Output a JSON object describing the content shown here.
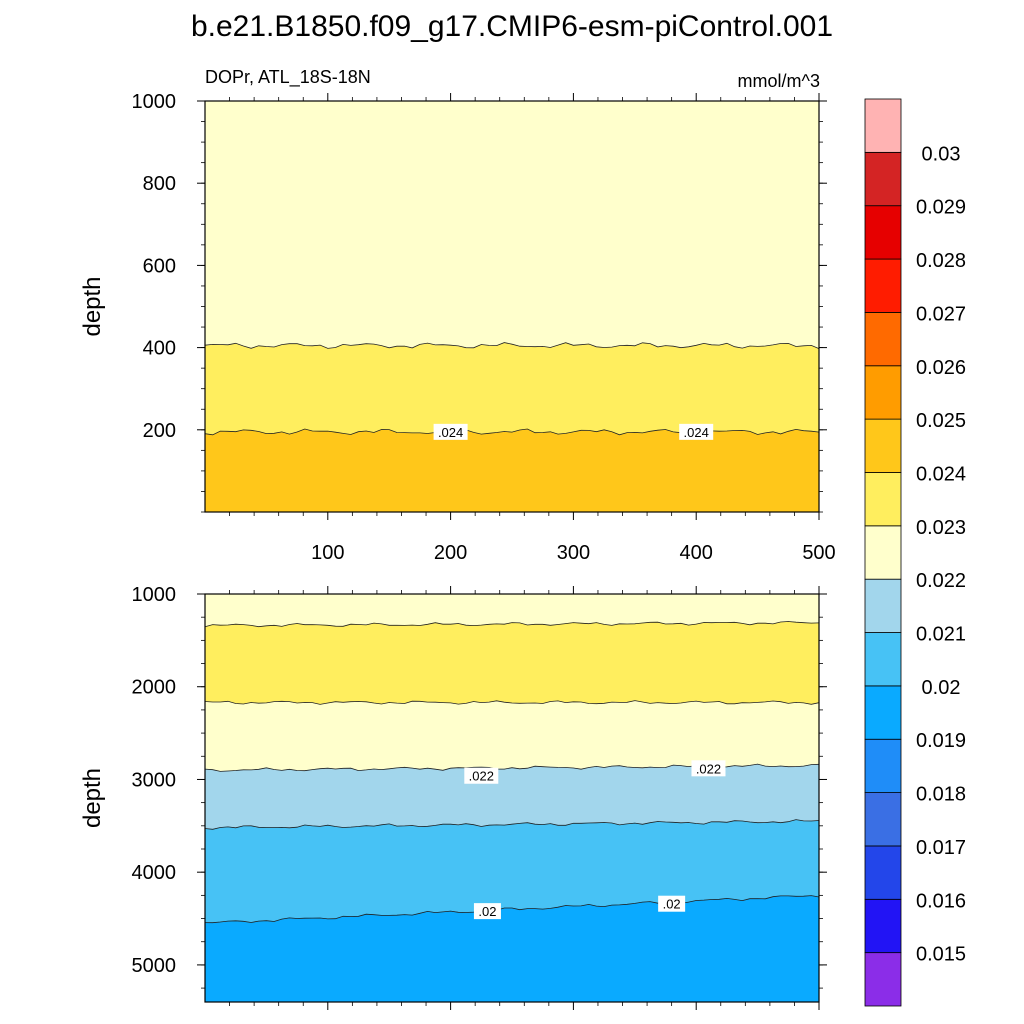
{
  "chart_data": {
    "type": "heatmap",
    "title": "b.e21.B1850.f09_g17.CMIP6-esm-piControl.001",
    "variable_label": "DOPr, ATL_18S-18N",
    "units": "mmol/m^3",
    "x_range": [
      0,
      500
    ],
    "x_ticks": [
      "100",
      "200",
      "300",
      "400",
      "500"
    ],
    "colorbar": {
      "colors": [
        "#8b2de8",
        "#2214f5",
        "#2346ea",
        "#3a6fe4",
        "#1f8df8",
        "#0aaaff",
        "#47c2f5",
        "#a2d6ec",
        "#ffffcc",
        "#ffee5e",
        "#ffc71a",
        "#ff9c00",
        "#ff6a00",
        "#ff1c00",
        "#e60000",
        "#d42424",
        "#ffb3b3"
      ],
      "labels": [
        "0.015",
        "0.016",
        "0.017",
        "0.018",
        "0.019",
        "0.02",
        "0.021",
        "0.022",
        "0.023",
        "0.024",
        "0.025",
        "0.026",
        "0.027",
        "0.028",
        "0.029",
        "0.03"
      ]
    },
    "panels": [
      {
        "name": "upper",
        "ylabel": "depth",
        "y_range": [
          1000,
          0
        ],
        "y_ticks": [
          "200",
          "400",
          "600",
          "800",
          "1000"
        ],
        "y_tick_values": [
          200,
          400,
          600,
          800,
          1000
        ],
        "bands": [
          {
            "from_depth": 0,
            "to_depth": 195,
            "color": "#ffc71a"
          },
          {
            "from_depth": 195,
            "to_depth": 405,
            "color": "#ffee5e"
          },
          {
            "from_depth": 405,
            "to_depth": 1000,
            "color": "#ffffcc"
          }
        ],
        "contour_labels": [
          {
            "text": ".024",
            "x": 200,
            "depth": 195
          },
          {
            "text": ".024",
            "x": 400,
            "depth": 195
          }
        ]
      },
      {
        "name": "lower",
        "ylabel": "depth",
        "y_range": [
          1000,
          5400
        ],
        "y_ticks": [
          "1000",
          "2000",
          "3000",
          "4000",
          "5000"
        ],
        "y_tick_values": [
          1000,
          2000,
          3000,
          4000,
          5000
        ],
        "bands": [
          {
            "from_depth": 1000,
            "to_depth": [
              1340,
              1310
            ],
            "color": "#ffffcc"
          },
          {
            "from_depth": [
              1340,
              1310
            ],
            "to_depth": [
              2170,
              2170
            ],
            "color": "#ffee5e"
          },
          {
            "from_depth": [
              2170,
              2170
            ],
            "to_depth": [
              2900,
              2850
            ],
            "color": "#ffffcc"
          },
          {
            "from_depth": [
              2900,
              2850
            ],
            "to_depth": [
              3520,
              3450
            ],
            "color": "#a2d6ec"
          },
          {
            "from_depth": [
              3520,
              3450
            ],
            "to_depth": [
              4550,
              4250
            ],
            "color": "#47c2f5"
          },
          {
            "from_depth": [
              4550,
              4250
            ],
            "to_depth": 5400,
            "color": "#0aaaff"
          }
        ],
        "contour_labels": [
          {
            "text": ".022",
            "x": 225,
            "depth": 2960
          },
          {
            "text": ".022",
            "x": 410,
            "depth": 2880
          },
          {
            "text": ".02",
            "x": 230,
            "depth": 4420
          },
          {
            "text": ".02",
            "x": 380,
            "depth": 4340
          }
        ]
      }
    ]
  }
}
